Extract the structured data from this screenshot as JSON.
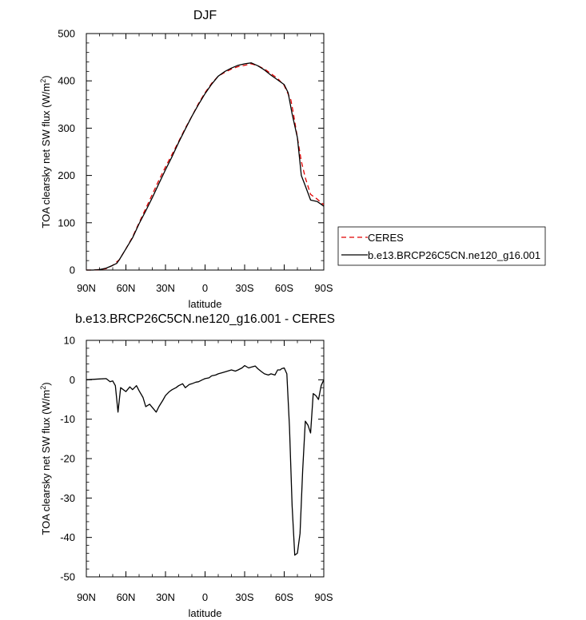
{
  "chart_data": [
    {
      "type": "line",
      "title": "DJF",
      "xlabel": "latitude",
      "ylabel": "TOA clearsky net SW flux (W/m",
      "ylabel_sup": "2",
      "ylabel_end": ")",
      "xticks": [
        -90,
        -60,
        -30,
        0,
        30,
        60,
        90
      ],
      "xtick_labels": [
        "90N",
        "60N",
        "30N",
        "0",
        "30S",
        "60S",
        "90S"
      ],
      "yticks": [
        0,
        100,
        200,
        300,
        400,
        500
      ],
      "xlim": [
        -90,
        90
      ],
      "ylim": [
        0,
        500
      ],
      "grid": false,
      "legend_position": "right",
      "series": [
        {
          "name": "CERES",
          "color": "#e00000",
          "style": "dashed",
          "x": [
            -90,
            -85,
            -80,
            -75,
            -70,
            -65,
            -60,
            -55,
            -50,
            -45,
            -40,
            -35,
            -30,
            -25,
            -20,
            -15,
            -10,
            -5,
            0,
            5,
            10,
            15,
            20,
            25,
            30,
            35,
            40,
            45,
            50,
            55,
            60,
            65,
            67,
            70,
            73,
            76,
            80,
            85,
            90
          ],
          "y": [
            0,
            0,
            1,
            3,
            10,
            22,
            45,
            70,
            100,
            130,
            160,
            190,
            218,
            245,
            272,
            300,
            325,
            352,
            375,
            395,
            410,
            418,
            425,
            430,
            433,
            436,
            432,
            425,
            415,
            405,
            390,
            360,
            330,
            280,
            230,
            195,
            160,
            150,
            138
          ]
        },
        {
          "name": "b.e13.BRCP26C5CN.ne120_g16.001",
          "color": "#000000",
          "style": "solid",
          "x": [
            -90,
            -85,
            -80,
            -75,
            -70,
            -67,
            -65,
            -60,
            -55,
            -50,
            -45,
            -40,
            -35,
            -30,
            -25,
            -20,
            -15,
            -10,
            -5,
            0,
            5,
            10,
            15,
            20,
            25,
            30,
            35,
            40,
            45,
            50,
            55,
            60,
            63,
            66,
            70,
            73,
            76,
            80,
            85,
            90
          ],
          "y": [
            0,
            0,
            1,
            4,
            10,
            14,
            22,
            45,
            68,
            98,
            125,
            153,
            183,
            212,
            240,
            270,
            298,
            325,
            350,
            373,
            393,
            410,
            420,
            427,
            433,
            436,
            438,
            432,
            423,
            412,
            402,
            392,
            375,
            330,
            280,
            200,
            178,
            148,
            145,
            135
          ]
        }
      ]
    },
    {
      "type": "line",
      "title": "b.e13.BRCP26C5CN.ne120_g16.001 - CERES",
      "xlabel": "latitude",
      "ylabel": "TOA clearsky net SW flux (W/m",
      "ylabel_sup": "2",
      "ylabel_end": ")",
      "xticks": [
        -90,
        -60,
        -30,
        0,
        30,
        60,
        90
      ],
      "xtick_labels": [
        "90N",
        "60N",
        "30N",
        "0",
        "30S",
        "60S",
        "90S"
      ],
      "yticks": [
        -50,
        -40,
        -30,
        -20,
        -10,
        0,
        10
      ],
      "xlim": [
        -90,
        90
      ],
      "ylim": [
        -50,
        10
      ],
      "grid": false,
      "series": [
        {
          "color": "#000000",
          "style": "solid",
          "x": [
            -90,
            -80,
            -75,
            -72,
            -70,
            -68,
            -66,
            -64,
            -60,
            -57,
            -55,
            -52,
            -50,
            -47,
            -45,
            -42,
            -40,
            -37,
            -35,
            -32,
            -30,
            -27,
            -25,
            -22,
            -20,
            -17,
            -15,
            -12,
            -10,
            -7,
            -5,
            -2,
            0,
            3,
            5,
            8,
            10,
            13,
            15,
            18,
            20,
            23,
            25,
            28,
            30,
            33,
            35,
            38,
            40,
            43,
            45,
            48,
            50,
            53,
            55,
            57,
            58,
            60,
            62,
            64,
            66,
            68,
            70,
            72,
            74,
            76,
            78,
            80,
            82,
            84,
            86,
            88,
            90
          ],
          "y": [
            0,
            0.2,
            0.3,
            -0.5,
            -0.3,
            -1.5,
            -8.2,
            -2,
            -3,
            -1.8,
            -2.5,
            -1.5,
            -2.8,
            -4.5,
            -6.8,
            -6.2,
            -7,
            -8.2,
            -6.8,
            -5.2,
            -4,
            -3,
            -2.5,
            -2,
            -1.5,
            -1,
            -2,
            -1.2,
            -1,
            -0.6,
            -0.5,
            0,
            0.3,
            0.5,
            1,
            1.2,
            1.5,
            1.8,
            2,
            2.3,
            2.5,
            2.2,
            2.5,
            3,
            3.6,
            3,
            3.2,
            3.5,
            2.8,
            2,
            1.5,
            1.2,
            1.5,
            1.2,
            2.5,
            2.5,
            2.8,
            3,
            1.5,
            -12,
            -32,
            -44.5,
            -44,
            -39,
            -23,
            -10.5,
            -11.5,
            -13.5,
            -3.5,
            -4,
            -5,
            -1.5,
            0
          ]
        }
      ]
    }
  ]
}
